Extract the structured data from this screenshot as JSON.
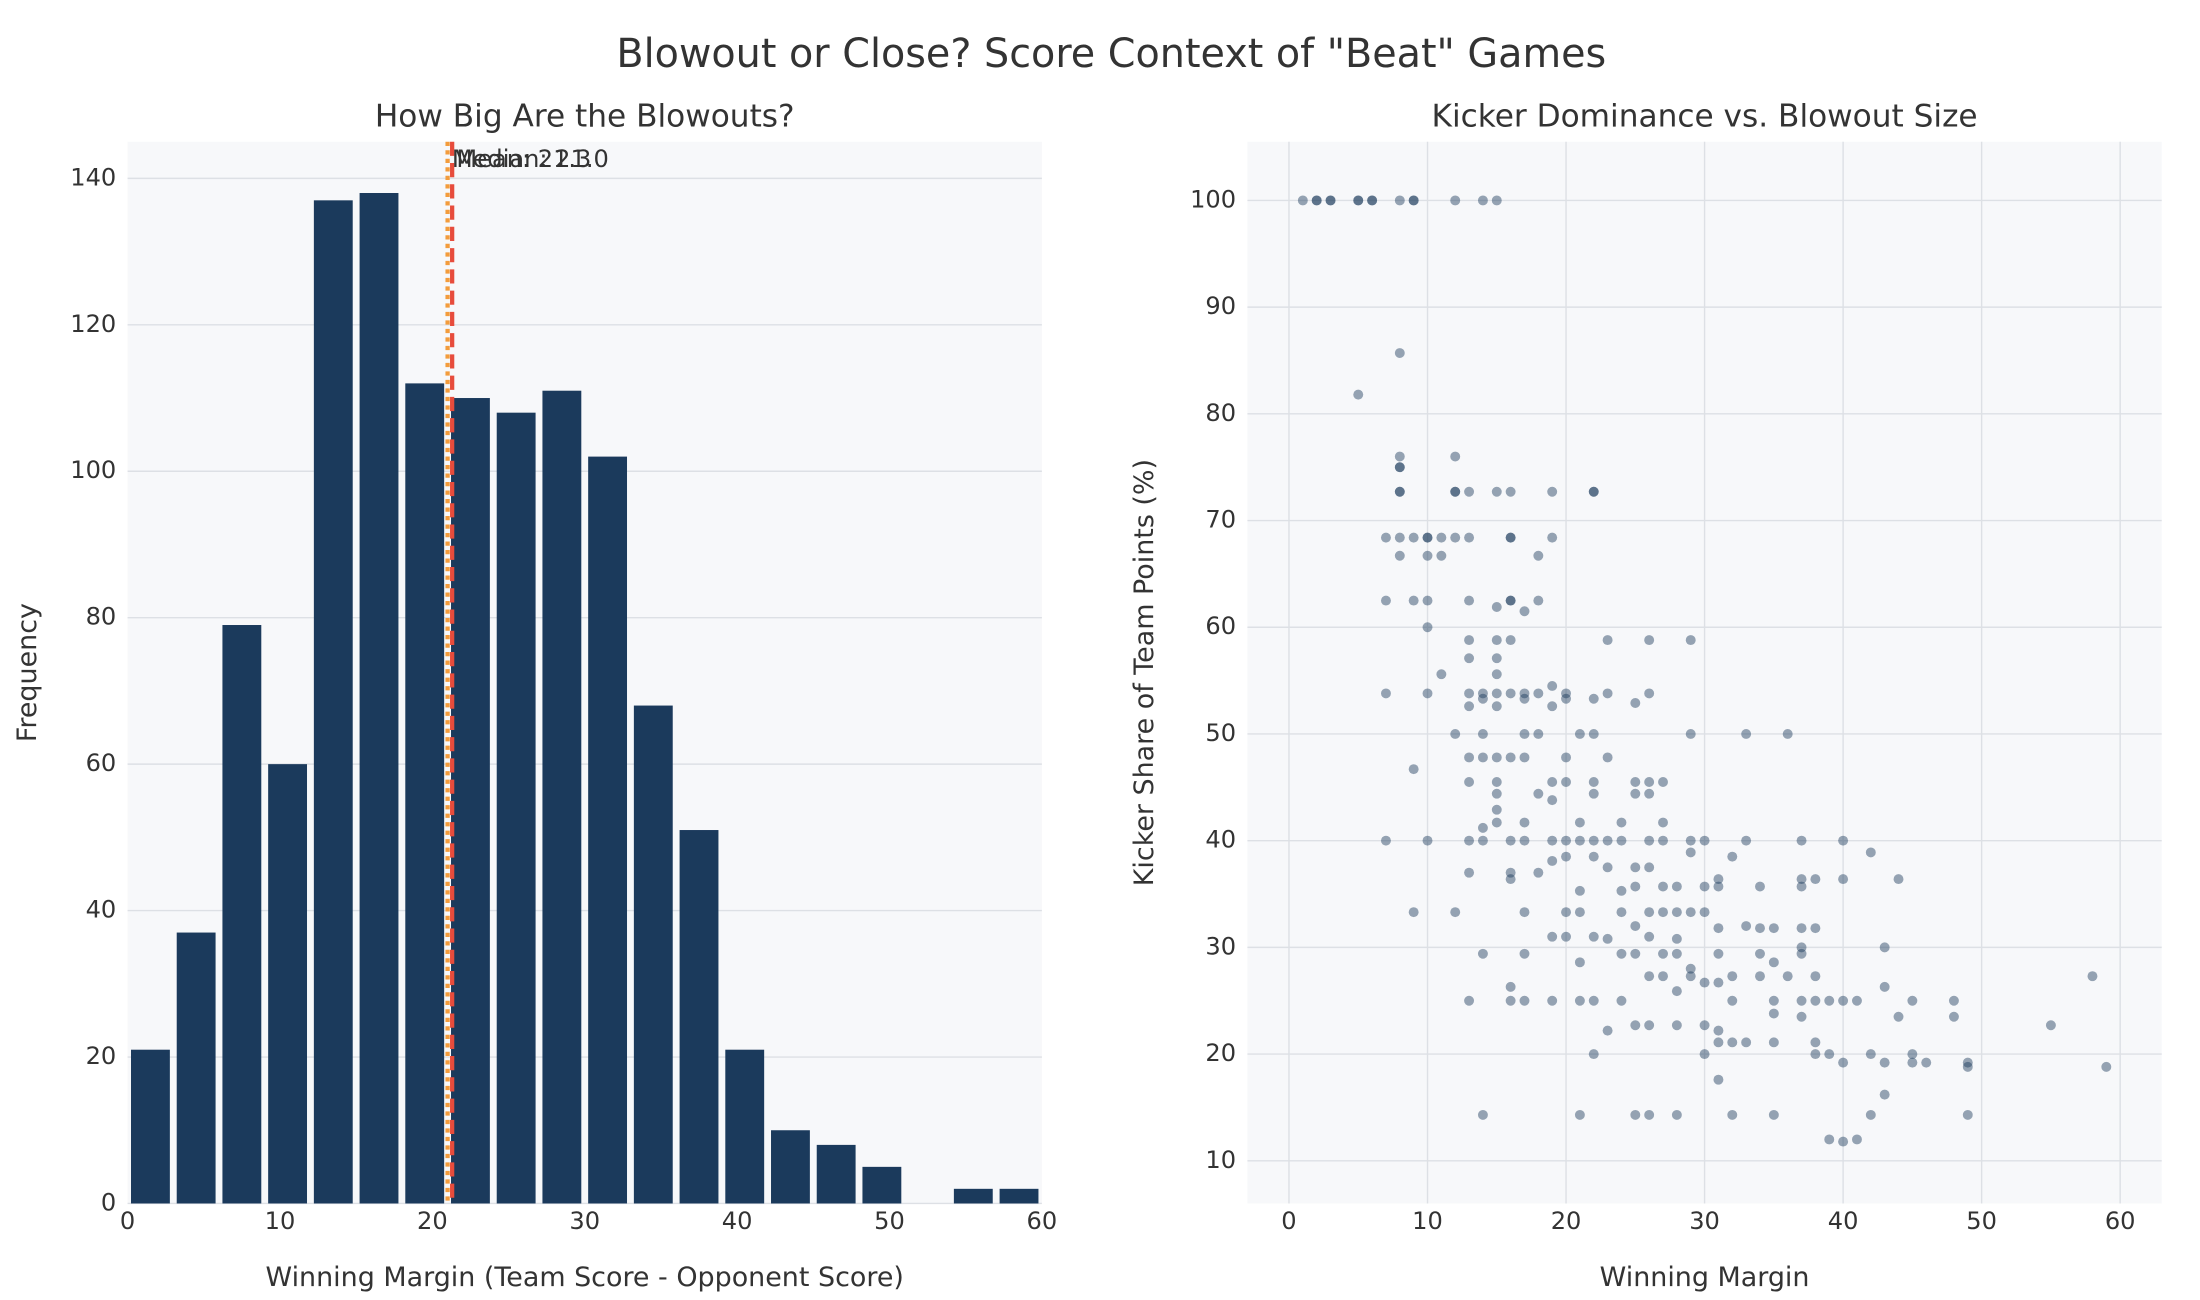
{
  "title": "Blowout or Close? Score Context of \"Beat\" Games",
  "chart_data": [
    {
      "type": "histogram",
      "title": "How Big Are the Blowouts?",
      "xlabel": "Winning Margin (Team Score - Opponent Score)",
      "ylabel": "Frequency",
      "bins": [
        0,
        3,
        6,
        9,
        12,
        15,
        18,
        21,
        24,
        27,
        30,
        33,
        36,
        39,
        42,
        45,
        48,
        51,
        54,
        57,
        60
      ],
      "values": [
        21,
        37,
        79,
        60,
        137,
        138,
        112,
        110,
        108,
        111,
        102,
        68,
        51,
        21,
        10,
        8,
        5,
        0,
        2,
        2
      ],
      "color": "#1b3a5c",
      "xlim": [
        0,
        60
      ],
      "ylim": [
        0,
        145
      ],
      "xticks": [
        0,
        10,
        20,
        30,
        40,
        50,
        60
      ],
      "yticks": [
        0,
        20,
        40,
        60,
        80,
        100,
        120,
        140
      ],
      "grid": true,
      "annotations": [
        {
          "label": "Mean: 21.3",
          "value": 21.3,
          "color": "#e74c3c",
          "style": "dashed"
        },
        {
          "label": "Median: 21.0",
          "value": 21.0,
          "color": "#f39c3c",
          "style": "dotted"
        }
      ]
    },
    {
      "type": "scatter",
      "title": "Kicker Dominance vs. Blowout Size",
      "xlabel": "Winning Margin",
      "ylabel": "Kicker Share of Team Points (%)",
      "color": "#1b3a5c",
      "alpha": 0.45,
      "x": [
        1,
        2,
        2,
        3,
        3,
        5,
        5,
        6,
        6,
        8,
        9,
        9,
        12,
        14,
        15,
        8,
        5,
        8,
        12,
        8,
        8,
        8,
        8,
        12,
        12,
        13,
        15,
        16,
        19,
        22,
        22,
        7,
        8,
        9,
        10,
        10,
        11,
        12,
        13,
        16,
        16,
        19,
        8,
        10,
        11,
        18,
        7,
        9,
        10,
        13,
        16,
        16,
        18,
        15,
        17,
        10,
        13,
        15,
        16,
        23,
        26,
        29,
        13,
        15,
        11,
        15,
        19,
        7,
        10,
        13,
        14,
        15,
        16,
        17,
        18,
        20,
        23,
        26,
        14,
        17,
        20,
        22,
        25,
        13,
        15,
        19,
        12,
        14,
        17,
        18,
        21,
        22,
        29,
        33,
        36,
        13,
        14,
        15,
        16,
        17,
        20,
        23,
        9,
        13,
        15,
        19,
        20,
        22,
        25,
        26,
        27,
        15,
        18,
        22,
        25,
        26,
        19,
        15,
        15,
        17,
        21,
        24,
        27,
        14,
        7,
        10,
        13,
        14,
        16,
        17,
        19,
        20,
        21,
        22,
        23,
        24,
        26,
        27,
        29,
        30,
        33,
        37,
        40,
        29,
        42,
        20,
        22,
        32,
        19,
        23,
        25,
        26,
        13,
        16,
        18,
        16,
        31,
        37,
        38,
        40,
        44,
        25,
        27,
        28,
        30,
        31,
        34,
        37,
        21,
        24,
        9,
        12,
        17,
        20,
        21,
        24,
        26,
        27,
        28,
        29,
        30,
        25,
        33,
        31,
        34,
        35,
        37,
        38,
        19,
        20,
        22,
        26,
        23,
        28,
        37,
        43,
        14,
        17,
        24,
        25,
        27,
        28,
        31,
        34,
        37,
        21,
        35,
        29,
        26,
        27,
        29,
        32,
        34,
        36,
        38,
        58,
        30,
        31,
        16,
        43,
        28,
        13,
        16,
        17,
        19,
        21,
        22,
        24,
        32,
        35,
        37,
        38,
        39,
        40,
        41,
        45,
        48,
        35,
        37,
        44,
        48,
        25,
        26,
        28,
        30,
        55,
        23,
        31,
        31,
        32,
        33,
        35,
        38,
        22,
        30,
        38,
        39,
        42,
        45,
        40,
        43,
        45,
        46,
        49,
        49,
        59,
        31,
        43,
        14,
        21,
        25,
        26,
        28,
        32,
        35,
        42,
        49,
        39,
        41,
        40
      ],
      "values": [
        100,
        100,
        100,
        100,
        100,
        100,
        100,
        100,
        100,
        100,
        100,
        100,
        100,
        100,
        100,
        85.7,
        81.8,
        76,
        76,
        75,
        75,
        72.7,
        72.7,
        72.7,
        72.7,
        72.7,
        72.7,
        72.7,
        72.7,
        72.7,
        72.7,
        68.4,
        68.4,
        68.4,
        68.4,
        68.4,
        68.4,
        68.4,
        68.4,
        68.4,
        68.4,
        68.4,
        66.7,
        66.7,
        66.7,
        66.7,
        62.5,
        62.5,
        62.5,
        62.5,
        62.5,
        62.5,
        62.5,
        61.9,
        61.5,
        60,
        58.8,
        58.8,
        58.8,
        58.8,
        58.8,
        58.8,
        57.1,
        57.1,
        55.6,
        55.6,
        54.5,
        53.8,
        53.8,
        53.8,
        53.8,
        53.8,
        53.8,
        53.8,
        53.8,
        53.8,
        53.8,
        53.8,
        53.3,
        53.3,
        53.3,
        53.3,
        52.9,
        52.6,
        52.6,
        52.6,
        50,
        50,
        50,
        50,
        50,
        50,
        50,
        50,
        50,
        47.8,
        47.8,
        47.8,
        47.8,
        47.8,
        47.8,
        47.8,
        46.7,
        45.5,
        45.5,
        45.5,
        45.5,
        45.5,
        45.5,
        45.5,
        45.5,
        44.4,
        44.4,
        44.4,
        44.4,
        44.4,
        43.8,
        42.9,
        41.7,
        41.7,
        41.7,
        41.7,
        41.7,
        41.2,
        40,
        40,
        40,
        40,
        40,
        40,
        40,
        40,
        40,
        40,
        40,
        40,
        40,
        40,
        40,
        40,
        40,
        40,
        40,
        38.9,
        38.9,
        38.5,
        38.5,
        38.5,
        38.1,
        37.5,
        37.5,
        37.5,
        37,
        37,
        37,
        36.4,
        36.4,
        36.4,
        36.4,
        36.4,
        36.4,
        35.7,
        35.7,
        35.7,
        35.7,
        35.7,
        35.7,
        35.7,
        35.3,
        35.3,
        33.3,
        33.3,
        33.3,
        33.3,
        33.3,
        33.3,
        33.3,
        33.3,
        33.3,
        33.3,
        33.3,
        32,
        32,
        31.8,
        31.8,
        31.8,
        31.8,
        31.8,
        31,
        31,
        31,
        31,
        30.8,
        30.8,
        30,
        30,
        29.4,
        29.4,
        29.4,
        29.4,
        29.4,
        29.4,
        29.4,
        29.4,
        29.4,
        28.6,
        28.6,
        28,
        27.3,
        27.3,
        27.3,
        27.3,
        27.3,
        27.3,
        27.3,
        27.3,
        26.7,
        26.7,
        26.3,
        26.3,
        25.9,
        25,
        25,
        25,
        25,
        25,
        25,
        25,
        25,
        25,
        25,
        25,
        25,
        25,
        25,
        25,
        25,
        23.8,
        23.5,
        23.5,
        23.5,
        22.7,
        22.7,
        22.7,
        22.7,
        22.7,
        22.2,
        22.2,
        21.1,
        21.1,
        21.1,
        21.1,
        21.1,
        20,
        20,
        20,
        20,
        20,
        20,
        19.2,
        19.2,
        19.2,
        19.2,
        19.2,
        18.8,
        18.8,
        17.6,
        16.2,
        14.3,
        14.3,
        14.3,
        14.3,
        14.3,
        14.3,
        14.3,
        14.3,
        14.3,
        12,
        12,
        11.8
      ],
      "xlim": [
        -3,
        63
      ],
      "ylim": [
        6,
        105.5
      ],
      "xticks": [
        0,
        10,
        20,
        30,
        40,
        50,
        60
      ],
      "yticks": [
        10,
        20,
        30,
        40,
        50,
        60,
        70,
        80,
        90,
        100
      ],
      "grid": true
    }
  ]
}
